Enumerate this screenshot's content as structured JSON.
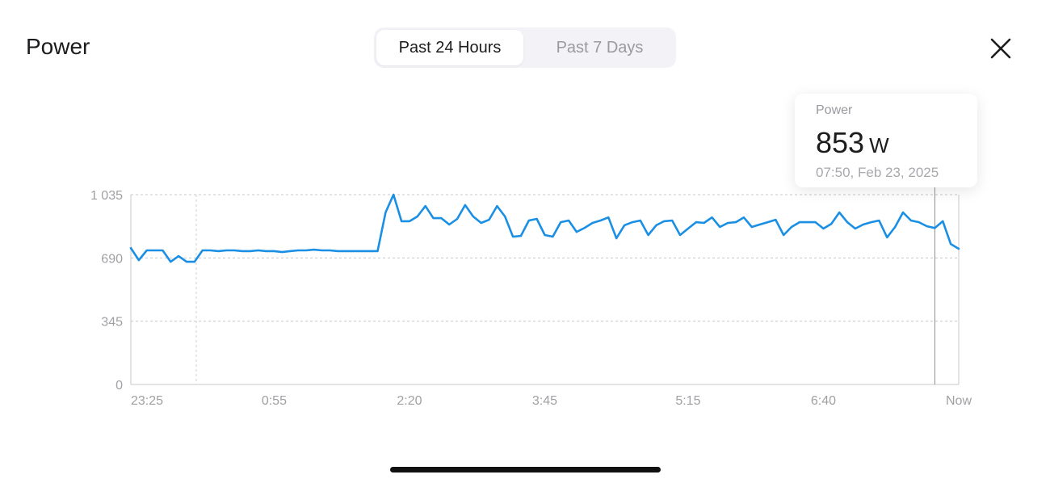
{
  "header": {
    "title": "Power",
    "close_icon": "close-x-icon"
  },
  "segmented": [
    {
      "label": "Past 24 Hours",
      "selected": true
    },
    {
      "label": "Past 7 Days",
      "selected": false
    }
  ],
  "tooltip": {
    "label": "Power",
    "value": "853",
    "unit": "W",
    "date": "07:50, Feb 23, 2025"
  },
  "chart_data": {
    "type": "line",
    "title": "",
    "xlabel": "",
    "ylabel": "",
    "ylim": [
      0,
      1035
    ],
    "y_ticks": [
      {
        "value": 0,
        "label": "0"
      },
      {
        "value": 345,
        "label": "345"
      },
      {
        "value": 690,
        "label": "690"
      },
      {
        "value": 1035,
        "label": "1 035"
      }
    ],
    "x_range": [
      "23:25",
      "08:05"
    ],
    "x_ticks": [
      {
        "value": "23:25",
        "label": "23:25"
      },
      {
        "value": "00:55",
        "label": "0:55"
      },
      {
        "value": "02:20",
        "label": "2:20"
      },
      {
        "value": "03:45",
        "label": "3:45"
      },
      {
        "value": "05:15",
        "label": "5:15"
      },
      {
        "value": "06:40",
        "label": "6:40"
      },
      {
        "value": "08:05",
        "label": "Now"
      }
    ],
    "grid": true,
    "line_color": "#1a8fe3",
    "selected_point": "07:50",
    "series": [
      {
        "x": [
          "23:25",
          "23:30",
          "23:35",
          "23:40",
          "23:45",
          "23:50",
          "23:55",
          "00:00",
          "00:05",
          "00:10",
          "00:15",
          "00:20",
          "00:25",
          "00:30",
          "00:35",
          "00:40",
          "00:45",
          "00:50",
          "00:55",
          "01:00",
          "01:05",
          "01:10",
          "01:15",
          "01:20",
          "01:25",
          "01:30",
          "01:35",
          "01:40",
          "01:45",
          "01:50",
          "01:55",
          "02:00",
          "02:05",
          "02:10",
          "02:15",
          "02:20",
          "02:25",
          "02:30",
          "02:35",
          "02:40",
          "02:45",
          "02:50",
          "02:55",
          "03:00",
          "03:05",
          "03:10",
          "03:15",
          "03:20",
          "03:25",
          "03:30",
          "03:35",
          "03:40",
          "03:45",
          "03:50",
          "03:55",
          "04:00",
          "04:05",
          "04:10",
          "04:15",
          "04:20",
          "04:25",
          "04:30",
          "04:35",
          "04:40",
          "04:45",
          "04:50",
          "04:55",
          "05:00",
          "05:05",
          "05:10",
          "05:15",
          "05:20",
          "05:25",
          "05:30",
          "05:35",
          "05:40",
          "05:45",
          "05:50",
          "05:55",
          "06:00",
          "06:05",
          "06:10",
          "06:15",
          "06:20",
          "06:25",
          "06:30",
          "06:35",
          "06:40",
          "06:45",
          "06:50",
          "06:55",
          "07:00",
          "07:05",
          "07:10",
          "07:15",
          "07:20",
          "07:25",
          "07:30",
          "07:35",
          "07:40",
          "07:45",
          "07:50",
          "07:55",
          "08:00",
          "08:05"
        ],
        "values": [
          744,
          678,
          731,
          731,
          731,
          669,
          700,
          669,
          669,
          731,
          731,
          727,
          731,
          731,
          727,
          727,
          731,
          727,
          727,
          722,
          727,
          731,
          731,
          735,
          731,
          731,
          727,
          727,
          727,
          727,
          727,
          727,
          938,
          1035,
          890,
          890,
          916,
          973,
          907,
          907,
          872,
          903,
          978,
          916,
          881,
          898,
          973,
          916,
          806,
          810,
          894,
          903,
          815,
          806,
          885,
          894,
          832,
          854,
          881,
          894,
          911,
          797,
          868,
          885,
          894,
          815,
          868,
          890,
          894,
          815,
          850,
          885,
          881,
          911,
          859,
          881,
          885,
          911,
          859,
          872,
          885,
          898,
          815,
          859,
          885,
          885,
          885,
          850,
          876,
          938,
          885,
          850,
          872,
          885,
          894,
          802,
          859,
          938,
          894,
          885,
          863,
          853,
          890,
          766,
          740
        ]
      }
    ]
  }
}
